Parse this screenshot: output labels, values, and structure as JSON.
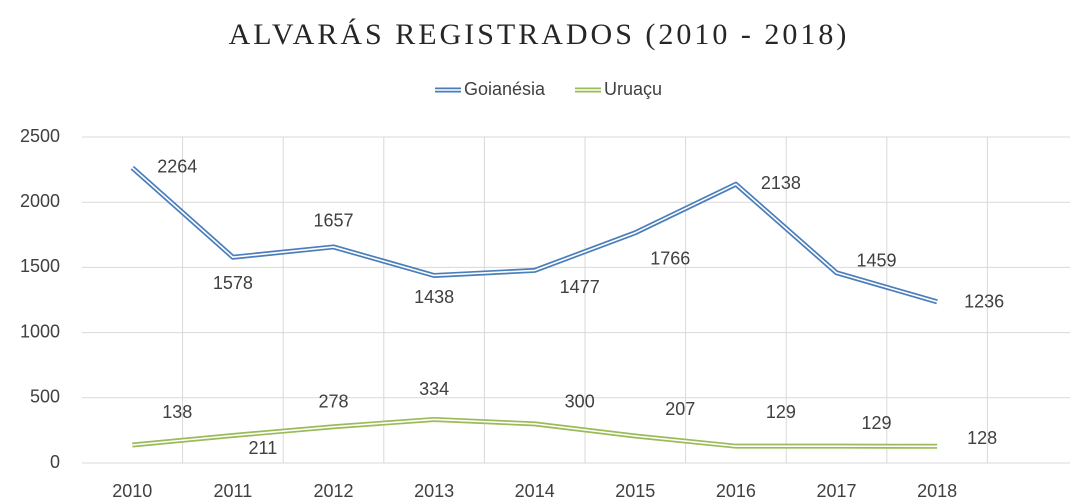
{
  "chart_data": {
    "type": "line",
    "title": "ALVARÁS REGISTRADOS (2010 - 2018)",
    "categories": [
      "2010",
      "2011",
      "2012",
      "2013",
      "2014",
      "2015",
      "2016",
      "2017",
      "2018"
    ],
    "series": [
      {
        "name": "Goianésia",
        "color": "#4a7ebb",
        "values": [
          2264,
          1578,
          1657,
          1438,
          1477,
          1766,
          2138,
          1459,
          1236
        ]
      },
      {
        "name": "Uruaçu",
        "color": "#9bbb59",
        "values": [
          138,
          211,
          278,
          334,
          300,
          207,
          129,
          129,
          128
        ]
      }
    ],
    "ylim": [
      0,
      2500
    ],
    "yticks": [
      0,
      500,
      1000,
      1500,
      2000,
      2500
    ],
    "grid": true,
    "legend": "top"
  }
}
